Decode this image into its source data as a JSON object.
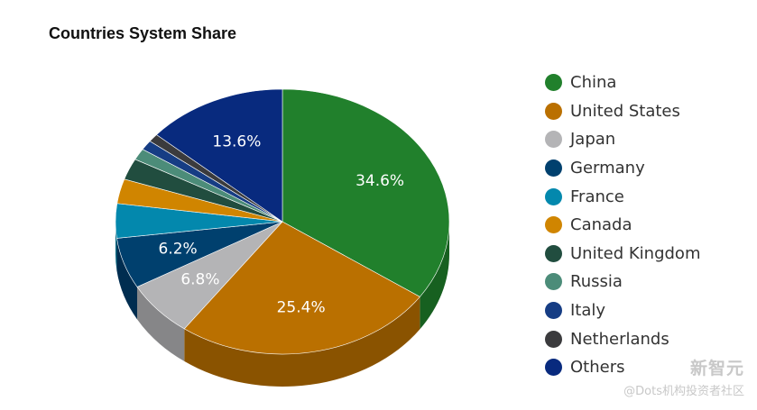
{
  "chart_data": {
    "type": "pie",
    "title": "Countries System Share",
    "slices": [
      {
        "name": "China",
        "value": 34.6,
        "label": "34.6%",
        "color": "#21802c",
        "side": "#176020"
      },
      {
        "name": "United States",
        "value": 25.4,
        "label": "25.4%",
        "color": "#ba7000",
        "side": "#8a5300"
      },
      {
        "name": "Japan",
        "value": 6.8,
        "label": "6.8%",
        "color": "#b4b4b6",
        "side": "#868688"
      },
      {
        "name": "Germany",
        "value": 6.2,
        "label": "6.2%",
        "color": "#00406e",
        "side": "#002d50"
      },
      {
        "name": "France",
        "value": 4.2,
        "label": "",
        "color": "#0388ad",
        "side": "#026680"
      },
      {
        "name": "Canada",
        "value": 3.0,
        "label": "",
        "color": "#d08500",
        "side": "#9c6400"
      },
      {
        "name": "United Kingdom",
        "value": 2.6,
        "label": "",
        "color": "#214d3f",
        "side": "#16382d"
      },
      {
        "name": "Russia",
        "value": 1.4,
        "label": "",
        "color": "#4c8c79",
        "side": "#39695a"
      },
      {
        "name": "Italy",
        "value": 1.2,
        "label": "",
        "color": "#163d84",
        "side": "#0f2d62"
      },
      {
        "name": "Netherlands",
        "value": 1.0,
        "label": "",
        "color": "#3b3b3d",
        "side": "#2a2a2b"
      },
      {
        "name": "Others",
        "value": 13.6,
        "label": "13.6%",
        "color": "#082a7e",
        "side": "#061e5c"
      }
    ],
    "legend_position": "right"
  },
  "watermark": {
    "line1": "新智元",
    "line2": "@Dots机构投资者社区"
  }
}
